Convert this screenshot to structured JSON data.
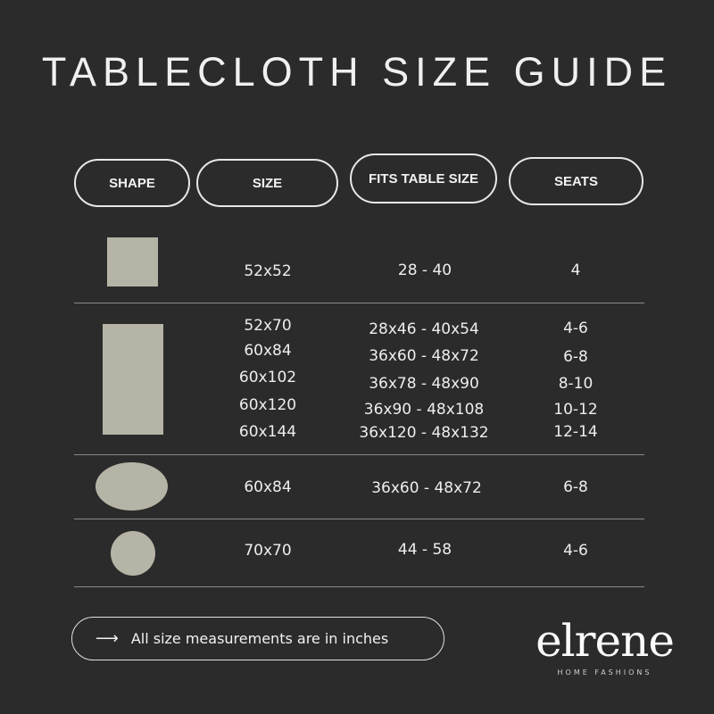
{
  "title": "TABLECLOTH SIZE GUIDE",
  "headers": {
    "shape": "SHAPE",
    "size": "SIZE",
    "fits": "FITS TABLE SIZE",
    "seats": "SEATS"
  },
  "colors": {
    "background": "#2b2b2b",
    "shape_fill": "#b6b4a6"
  },
  "rows": [
    {
      "shape": "square",
      "sizes": [
        "52x52"
      ],
      "fits": [
        "28 - 40"
      ],
      "seats": [
        "4"
      ]
    },
    {
      "shape": "rectangle",
      "sizes": [
        "52x70",
        "60x84",
        "60x102",
        "60x120",
        "60x144"
      ],
      "fits": [
        "28x46 - 40x54",
        "36x60 - 48x72",
        "36x78 - 48x90",
        "36x90 - 48x108",
        "36x120 - 48x132"
      ],
      "seats": [
        "4-6",
        "6-8",
        "8-10",
        "10-12",
        "12-14"
      ]
    },
    {
      "shape": "oval",
      "sizes": [
        "60x84"
      ],
      "fits": [
        "36x60 - 48x72"
      ],
      "seats": [
        "6-8"
      ]
    },
    {
      "shape": "round",
      "sizes": [
        "70x70"
      ],
      "fits": [
        "44 - 58"
      ],
      "seats": [
        "4-6"
      ]
    }
  ],
  "note": {
    "icon": "arrow-right-icon",
    "text": "All size measurements are in inches"
  },
  "logo": {
    "name": "elrene",
    "tagline": "HOME FASHIONS"
  }
}
